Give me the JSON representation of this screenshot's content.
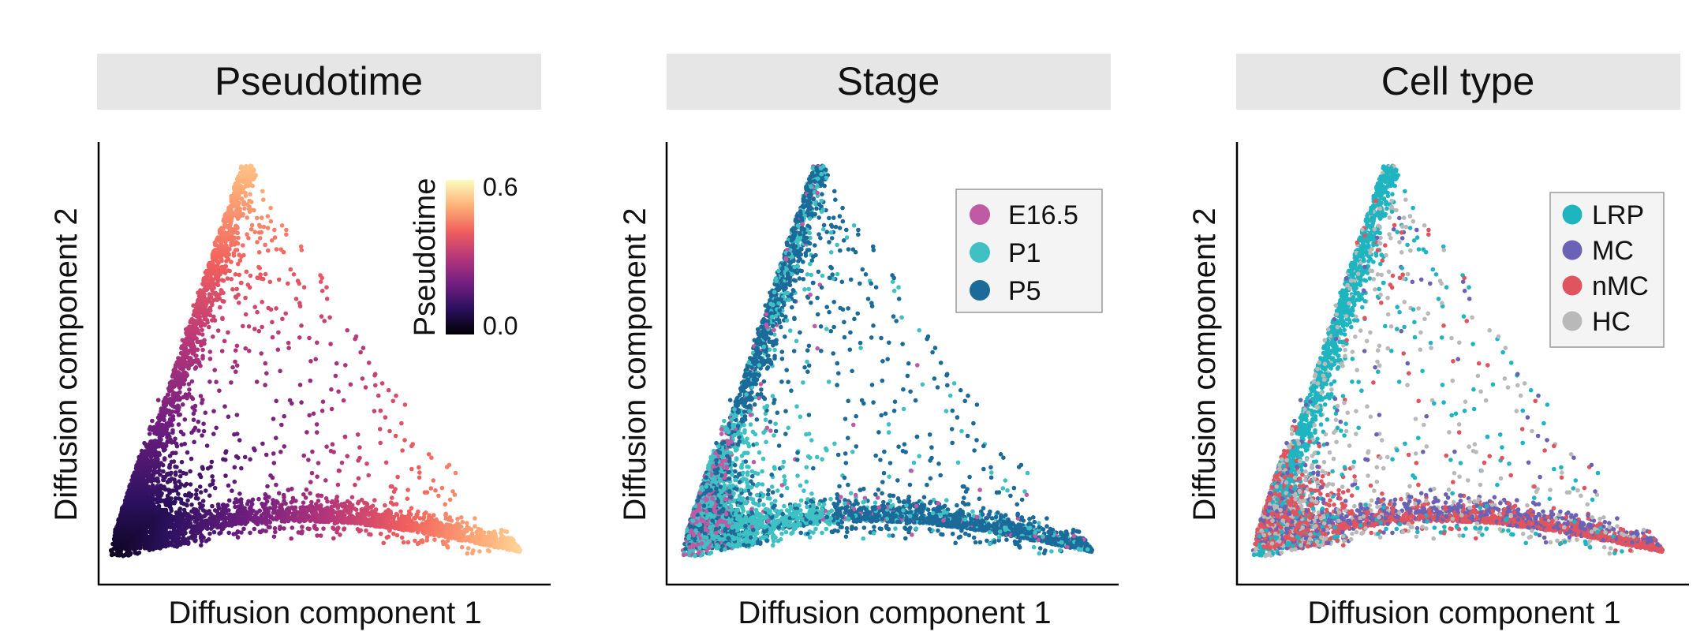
{
  "chart_data": [
    {
      "type": "scatter",
      "title": "Pseudotime",
      "xlabel": "Diffusion component 1",
      "ylabel": "Diffusion component 2",
      "color_by": "continuous",
      "colorbar": {
        "title": "Pseudotime",
        "min_label": "0.0",
        "max_label": "0.6",
        "range": [
          0.0,
          0.6
        ],
        "colormap": [
          "#000004",
          "#2c115f",
          "#721f81",
          "#b73779",
          "#f1605d",
          "#feb078",
          "#fcfdbf"
        ]
      },
      "legend_position": "top-right"
    },
    {
      "type": "scatter",
      "title": "Stage",
      "xlabel": "Diffusion component 1",
      "ylabel": "Diffusion component 2",
      "color_by": "categorical",
      "legend_position": "top-right",
      "series": [
        {
          "name": "E16.5",
          "color": "#c05aa5"
        },
        {
          "name": "P1",
          "color": "#3fc1c4"
        },
        {
          "name": "P5",
          "color": "#1b6a99"
        }
      ]
    },
    {
      "type": "scatter",
      "title": "Cell type",
      "xlabel": "Diffusion component 1",
      "ylabel": "Diffusion component 2",
      "color_by": "categorical",
      "legend_position": "top-right",
      "series": [
        {
          "name": "LRP",
          "color": "#1fb5c0"
        },
        {
          "name": "MC",
          "color": "#6a62b4"
        },
        {
          "name": "nMC",
          "color": "#e05460"
        },
        {
          "name": "HC",
          "color": "#b9b9b9"
        }
      ]
    }
  ]
}
